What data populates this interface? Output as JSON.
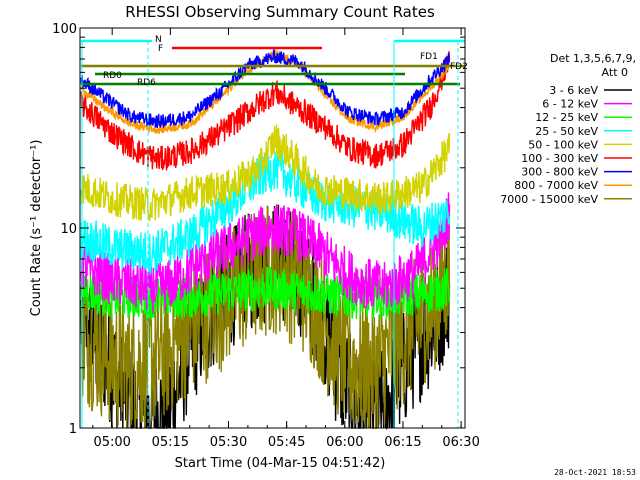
{
  "chart_data": {
    "type": "line",
    "title": "RHESSI Observing Summary Count Rates",
    "xlabel": "Start Time (04-Mar-15 04:51:42)",
    "ylabel": "Count Rate (s⁻¹ detector⁻¹)",
    "yscale": "log",
    "ylim": [
      1,
      100
    ],
    "xlim": [
      "04:51:42",
      "06:31:00"
    ],
    "x_ticks": [
      "05:00",
      "05:15",
      "05:30",
      "05:45",
      "06:00",
      "06:15",
      "06:30"
    ],
    "y_ticks": [
      "1",
      "10",
      "100"
    ],
    "footer_date": "28-Oct-2021 18:53",
    "legend": {
      "header": [
        "Det 1,3,5,6,7,9,",
        "Att 0"
      ],
      "entries": [
        {
          "label": "3 - 6 keV",
          "color": "#000000"
        },
        {
          "label": "6 - 12 keV",
          "color": "#ff00ff"
        },
        {
          "label": "12 - 25 keV",
          "color": "#00ff00"
        },
        {
          "label": "25 - 50 keV",
          "color": "#00ffff"
        },
        {
          "label": "50 - 100 keV",
          "color": "#d2d200"
        },
        {
          "label": "100 - 300 keV",
          "color": "#ff0000"
        },
        {
          "label": "300 - 800 keV",
          "color": "#0000ff"
        },
        {
          "label": "800 - 7000 keV",
          "color": "#ff9900"
        },
        {
          "label": "7000 - 15000 keV",
          "color": "#8b8000"
        }
      ]
    },
    "flags": [
      {
        "label": "N",
        "color": "#00ffff"
      },
      {
        "label": "F",
        "color": "#ff0000"
      },
      {
        "label": "RD0",
        "color": "#008000"
      },
      {
        "label": "RD6",
        "color": "#008000"
      },
      {
        "label": "FD1",
        "color": "#808000"
      },
      {
        "label": "FD2",
        "color": "#808000"
      }
    ],
    "series": [
      {
        "name": "3 - 6 keV",
        "color": "#000000",
        "noise": 0.7,
        "x": [
          "04:52",
          "05:00",
          "05:05",
          "05:10",
          "05:15",
          "05:20",
          "05:28",
          "05:35",
          "05:42",
          "05:48",
          "05:53",
          "05:58",
          "06:03",
          "06:08",
          "06:12",
          "06:18",
          "06:24",
          "06:27"
        ],
        "y": [
          3.5,
          2.0,
          1.3,
          1.1,
          1.3,
          2.5,
          4.5,
          6.0,
          7.0,
          6.0,
          4.0,
          2.0,
          1.3,
          1.1,
          1.5,
          2.5,
          3.5,
          5.0
        ]
      },
      {
        "name": "6 - 12 keV",
        "color": "#ff00ff",
        "noise": 0.3,
        "x": [
          "04:52",
          "05:00",
          "05:10",
          "05:15",
          "05:22",
          "05:30",
          "05:38",
          "05:42",
          "05:47",
          "05:53",
          "05:58",
          "06:03",
          "06:10",
          "06:18",
          "06:25",
          "06:27"
        ],
        "y": [
          6.5,
          5.5,
          5.0,
          5.2,
          6.5,
          8.0,
          9.5,
          10.0,
          9.5,
          8.0,
          6.5,
          5.5,
          5.0,
          6.0,
          9.0,
          12.0
        ]
      },
      {
        "name": "12 - 25 keV",
        "color": "#00ff00",
        "noise": 0.25,
        "x": [
          "04:52",
          "05:00",
          "05:10",
          "05:20",
          "05:30",
          "05:40",
          "05:50",
          "06:00",
          "06:10",
          "06:20",
          "06:27"
        ],
        "y": [
          5.0,
          4.5,
          4.5,
          4.5,
          4.8,
          5.0,
          4.8,
          4.5,
          4.5,
          4.7,
          5.0
        ]
      },
      {
        "name": "25 - 50 keV",
        "color": "#00ffff",
        "noise": 0.25,
        "x": [
          "04:52",
          "05:00",
          "05:10",
          "05:20",
          "05:30",
          "05:38",
          "05:42",
          "05:47",
          "05:53",
          "06:00",
          "06:10",
          "06:20",
          "06:27"
        ],
        "y": [
          9.0,
          8.0,
          7.5,
          9.0,
          13.0,
          18.0,
          20.0,
          17.0,
          14.0,
          13.0,
          12.0,
          10.0,
          12.0
        ]
      },
      {
        "name": "50 - 100 keV",
        "color": "#d2d200",
        "noise": 0.2,
        "x": [
          "04:52",
          "05:00",
          "05:10",
          "05:20",
          "05:30",
          "05:38",
          "05:42",
          "05:47",
          "05:53",
          "06:00",
          "06:10",
          "06:20",
          "06:27"
        ],
        "y": [
          16.0,
          14.0,
          13.0,
          15.0,
          16.0,
          20.0,
          28.0,
          22.0,
          16.0,
          15.0,
          14.0,
          16.0,
          25.0
        ]
      },
      {
        "name": "100 - 300 keV",
        "color": "#ff0000",
        "noise": 0.15,
        "x": [
          "04:52",
          "05:00",
          "05:07",
          "05:12",
          "05:20",
          "05:28",
          "05:35",
          "05:42",
          "05:48",
          "05:55",
          "06:01",
          "06:08",
          "06:15",
          "06:22",
          "06:27"
        ],
        "y": [
          42.0,
          30.0,
          24.0,
          22.0,
          24.0,
          30.0,
          38.0,
          48.0,
          40.0,
          32.0,
          25.0,
          23.0,
          26.0,
          40.0,
          70.0
        ]
      },
      {
        "name": "300 - 800 keV",
        "color": "#0000ff",
        "noise": 0.08,
        "x": [
          "04:52",
          "04:58",
          "05:05",
          "05:12",
          "05:20",
          "05:28",
          "05:35",
          "05:42",
          "05:48",
          "05:55",
          "06:01",
          "06:08",
          "06:15",
          "06:22",
          "06:27"
        ],
        "y": [
          55.0,
          45.0,
          36.0,
          34.0,
          36.0,
          48.0,
          65.0,
          72.0,
          68.0,
          50.0,
          38.0,
          35.0,
          38.0,
          55.0,
          70.0
        ]
      },
      {
        "name": "800 - 7000 keV",
        "color": "#ff9900",
        "noise": 0.05,
        "x": [
          "04:52",
          "04:58",
          "05:05",
          "05:12",
          "05:20",
          "05:28",
          "05:35",
          "05:42",
          "05:48",
          "05:55",
          "06:01",
          "06:08",
          "06:15",
          "06:22",
          "06:27"
        ],
        "y": [
          50.0,
          40.0,
          33.0,
          31.0,
          33.0,
          45.0,
          62.0,
          74.0,
          66.0,
          46.0,
          35.0,
          32.0,
          36.0,
          50.0,
          65.0
        ]
      },
      {
        "name": "7000 - 15000 keV",
        "color": "#8b8000",
        "noise": 0.8,
        "x": [
          "04:52",
          "05:00",
          "05:05",
          "05:10",
          "05:15",
          "05:20",
          "05:28",
          "05:35",
          "05:42",
          "05:48",
          "05:53",
          "05:58",
          "06:03",
          "06:08",
          "06:12",
          "06:18",
          "06:24",
          "06:27"
        ],
        "y": [
          3.0,
          2.2,
          2.0,
          2.2,
          2.5,
          3.2,
          4.2,
          5.5,
          6.5,
          5.5,
          4.0,
          2.5,
          2.0,
          2.0,
          2.5,
          3.2,
          4.5,
          6.0
        ]
      }
    ]
  }
}
